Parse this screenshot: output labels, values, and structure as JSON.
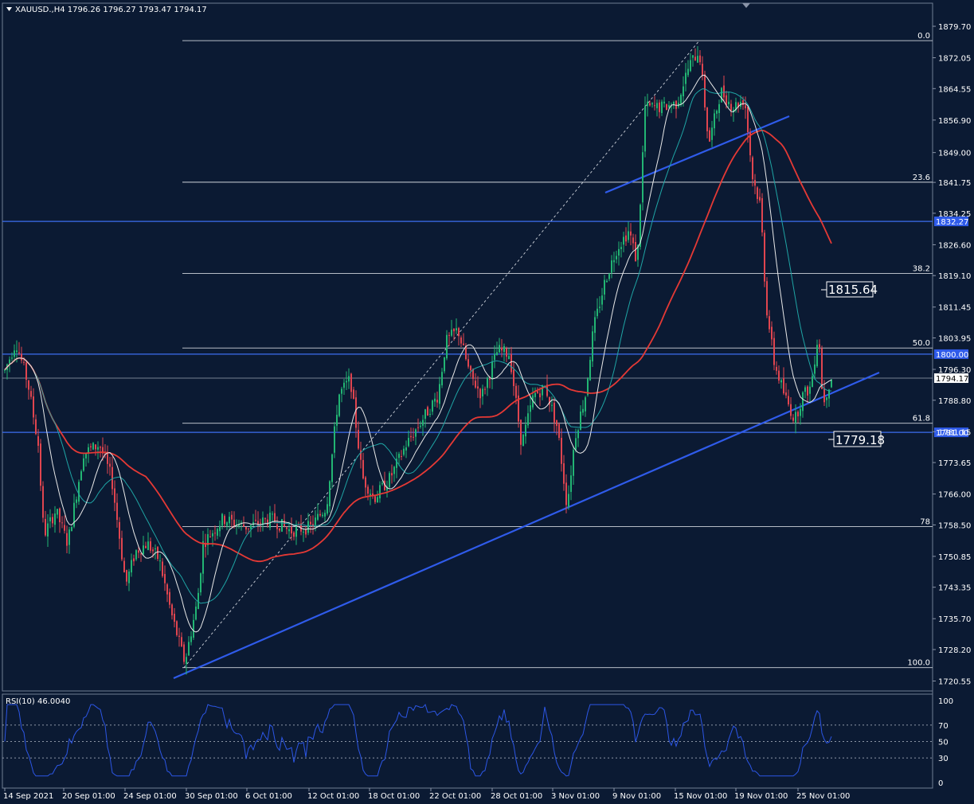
{
  "symbol_line": "XAUUSD.,H4  1796.26 1796.27 1793.47 1794.17",
  "chart_data": {
    "type": "candlestick",
    "symbol": "XAUUSD.",
    "timeframe": "H4",
    "ohlc_header": {
      "open": 1796.26,
      "high": 1796.27,
      "low": 1793.47,
      "close": 1794.17
    },
    "price_ticks": [
      "1879.70",
      "1872.05",
      "1864.55",
      "1856.90",
      "1849.00",
      "1841.75",
      "1834.25",
      "1826.60",
      "1819.10",
      "1811.45",
      "1803.95",
      "1796.30",
      "1788.80",
      "1781.15",
      "1773.65",
      "1766.00",
      "1758.50",
      "1750.85",
      "1743.35",
      "1735.70",
      "1728.20",
      "1720.55"
    ],
    "x_ticks": [
      "14 Sep 2021",
      "20 Sep 01:00",
      "24 Sep 01:00",
      "30 Sep 01:00",
      "6 Oct 01:00",
      "12 Oct 01:00",
      "18 Oct 01:00",
      "22 Oct 01:00",
      "28 Oct 01:00",
      "3 Nov 01:00",
      "9 Nov 01:00",
      "15 Nov 01:00",
      "19 Nov 01:00",
      "25 Nov 01:00"
    ],
    "current_price": "1794.17",
    "horizontal_levels": [
      "1832.27",
      "1800.00",
      "1781.00"
    ],
    "fibonacci": {
      "levels": [
        {
          "label": "0.0",
          "price": 1876.2
        },
        {
          "label": "23.6",
          "price": 1841.8
        },
        {
          "label": "38.2",
          "price": 1819.6
        },
        {
          "label": "50.0",
          "price": 1801.5
        },
        {
          "label": "61.8",
          "price": 1783.2
        },
        {
          "label": "78",
          "price": 1758.1
        },
        {
          "label": "100.0",
          "price": 1723.8
        }
      ]
    },
    "annotations": [
      "1815.64",
      "1779.18"
    ],
    "moving_averages": [
      {
        "color": "#e53935",
        "role": "slow"
      },
      {
        "color": "#1fa5a5",
        "role": "medium"
      },
      {
        "color": "#e8e8e8",
        "role": "fast"
      }
    ],
    "rsi": {
      "label": "RSI(10) 46.0040",
      "ticks": [
        "100",
        "70",
        "50",
        "30",
        "0"
      ],
      "levels": [
        70,
        50,
        30
      ]
    },
    "colors": {
      "background": "#0b1a33",
      "bull_candle": "#22b573",
      "bear_candle": "#e0454f",
      "trendline": "#2f5bea",
      "rsi_line": "#2c56e6"
    }
  }
}
